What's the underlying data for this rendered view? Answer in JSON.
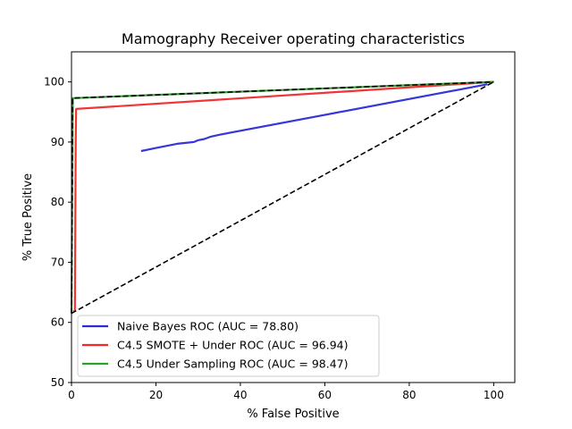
{
  "chart_data": {
    "type": "line",
    "title": "Mamography Receiver operating characteristics",
    "xlabel": "% False Positive",
    "ylabel": "% True Positive",
    "xlim": [
      0,
      105
    ],
    "ylim": [
      50,
      105
    ],
    "xticks": [
      0,
      20,
      40,
      60,
      80,
      100
    ],
    "yticks": [
      50,
      60,
      70,
      80,
      90,
      100
    ],
    "grid": false,
    "legend_position": "lower-left",
    "series": [
      {
        "name": "Naive Bayes ROC (AUC = 78.80)",
        "color": "#2b2bd9",
        "style": "solid",
        "points": [
          [
            16.5,
            88.5
          ],
          [
            20,
            89.0
          ],
          [
            25,
            89.7
          ],
          [
            29,
            90.0
          ],
          [
            30,
            90.3
          ],
          [
            31.5,
            90.5
          ],
          [
            33,
            90.9
          ],
          [
            35,
            91.2
          ],
          [
            98.5,
            99.6
          ]
        ]
      },
      {
        "name": "C4.5 SMOTE + Under ROC (AUC = 96.94)",
        "color": "#ee2a2a",
        "style": "solid",
        "points": [
          [
            0.5,
            61.8
          ],
          [
            0.8,
            62.0
          ],
          [
            1.0,
            90.0
          ],
          [
            1.1,
            95.5
          ],
          [
            100,
            100
          ]
        ]
      },
      {
        "name": "C4.5 Under Sampling ROC (AUC = 98.47)",
        "color": "#2ca02c",
        "style": "solid",
        "points": [
          [
            0,
            61.5
          ],
          [
            0.3,
            97.3
          ],
          [
            100,
            100
          ]
        ]
      }
    ],
    "reference_lines": [
      {
        "color": "#000000",
        "style": "dashed",
        "points": [
          [
            0,
            61.5
          ],
          [
            100,
            100
          ]
        ]
      },
      {
        "color": "#000000",
        "style": "dashed",
        "points": [
          [
            0,
            61.5
          ],
          [
            0.3,
            97.3
          ],
          [
            100,
            100
          ]
        ]
      }
    ]
  }
}
